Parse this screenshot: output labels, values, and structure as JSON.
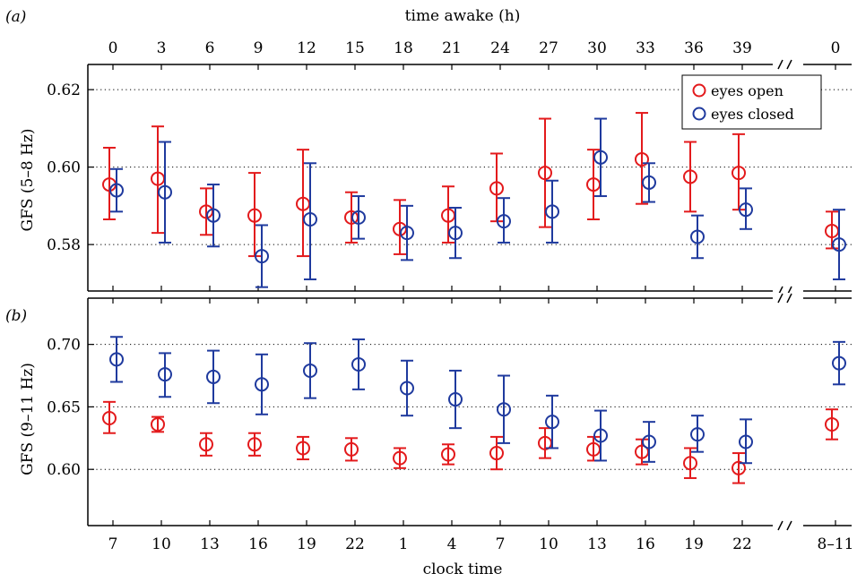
{
  "chart_data": [
    {
      "type": "scatter",
      "panel_label": "(a)",
      "top_axis_label": "time awake (h)",
      "top_tick_labels": [
        "0",
        "3",
        "6",
        "9",
        "12",
        "15",
        "18",
        "21",
        "24",
        "27",
        "30",
        "33",
        "36",
        "39",
        "0"
      ],
      "ylabel": "GFS (5–8 Hz)",
      "yticks": [
        "0.58",
        "0.60",
        "0.62"
      ],
      "ylim": [
        0.568,
        0.6265
      ],
      "grid": "horizontal dotted",
      "legend_position": "top-right",
      "series": [
        {
          "name": "eyes open",
          "color": "#e31a1c",
          "values": [
            0.5955,
            0.597,
            0.5885,
            0.5875,
            0.5905,
            0.587,
            0.584,
            0.5875,
            0.5945,
            0.5985,
            0.5955,
            0.602,
            0.5975,
            0.5985,
            0.5835
          ],
          "lower": [
            0.5865,
            0.583,
            0.5825,
            0.577,
            0.577,
            0.5805,
            0.5775,
            0.5805,
            0.586,
            0.5845,
            0.5865,
            0.5905,
            0.5885,
            0.589,
            0.579
          ],
          "upper": [
            0.605,
            0.6105,
            0.5945,
            0.5985,
            0.6045,
            0.5935,
            0.5915,
            0.595,
            0.6035,
            0.6125,
            0.6045,
            0.614,
            0.6065,
            0.6085,
            0.5885
          ]
        },
        {
          "name": "eyes closed",
          "color": "#1f3a9e",
          "values": [
            0.594,
            0.5935,
            0.5875,
            0.577,
            0.5865,
            0.587,
            0.583,
            0.583,
            0.586,
            0.5885,
            0.6025,
            0.596,
            0.582,
            0.589,
            0.58
          ],
          "lower": [
            0.5885,
            0.5805,
            0.5795,
            0.569,
            0.571,
            0.5815,
            0.576,
            0.5765,
            0.5805,
            0.5805,
            0.5925,
            0.591,
            0.5765,
            0.584,
            0.571
          ],
          "upper": [
            0.5995,
            0.6065,
            0.5955,
            0.585,
            0.601,
            0.5925,
            0.59,
            0.5895,
            0.592,
            0.5965,
            0.6125,
            0.601,
            0.5875,
            0.5945,
            0.589
          ]
        }
      ]
    },
    {
      "type": "scatter",
      "panel_label": "(b)",
      "ylabel": "GFS (9–11 Hz)",
      "xlabel": "clock time",
      "yticks": [
        "0.60",
        "0.65",
        "0.70"
      ],
      "ylim": [
        0.555,
        0.737
      ],
      "bottom_tick_labels": [
        "7",
        "10",
        "13",
        "16",
        "19",
        "22",
        "1",
        "4",
        "7",
        "10",
        "13",
        "16",
        "19",
        "22",
        "8–11"
      ],
      "grid": "horizontal dotted",
      "series": [
        {
          "name": "eyes open",
          "color": "#e31a1c",
          "values": [
            0.641,
            0.636,
            0.62,
            0.62,
            0.617,
            0.616,
            0.609,
            0.612,
            0.613,
            0.621,
            0.616,
            0.614,
            0.605,
            0.601,
            0.636
          ],
          "lower": [
            0.629,
            0.63,
            0.611,
            0.611,
            0.608,
            0.607,
            0.601,
            0.604,
            0.6,
            0.609,
            0.607,
            0.604,
            0.593,
            0.589,
            0.624
          ],
          "upper": [
            0.654,
            0.642,
            0.629,
            0.629,
            0.626,
            0.625,
            0.617,
            0.62,
            0.626,
            0.633,
            0.626,
            0.624,
            0.617,
            0.613,
            0.648
          ]
        },
        {
          "name": "eyes closed",
          "color": "#1f3a9e",
          "values": [
            0.688,
            0.676,
            0.674,
            0.668,
            0.679,
            0.684,
            0.665,
            0.656,
            0.648,
            0.638,
            0.627,
            0.622,
            0.628,
            0.622,
            0.685
          ],
          "lower": [
            0.67,
            0.658,
            0.653,
            0.644,
            0.657,
            0.664,
            0.643,
            0.633,
            0.621,
            0.617,
            0.607,
            0.606,
            0.614,
            0.605,
            0.668
          ],
          "upper": [
            0.706,
            0.693,
            0.695,
            0.692,
            0.701,
            0.704,
            0.687,
            0.679,
            0.675,
            0.659,
            0.647,
            0.638,
            0.643,
            0.64,
            0.702
          ]
        }
      ]
    }
  ]
}
